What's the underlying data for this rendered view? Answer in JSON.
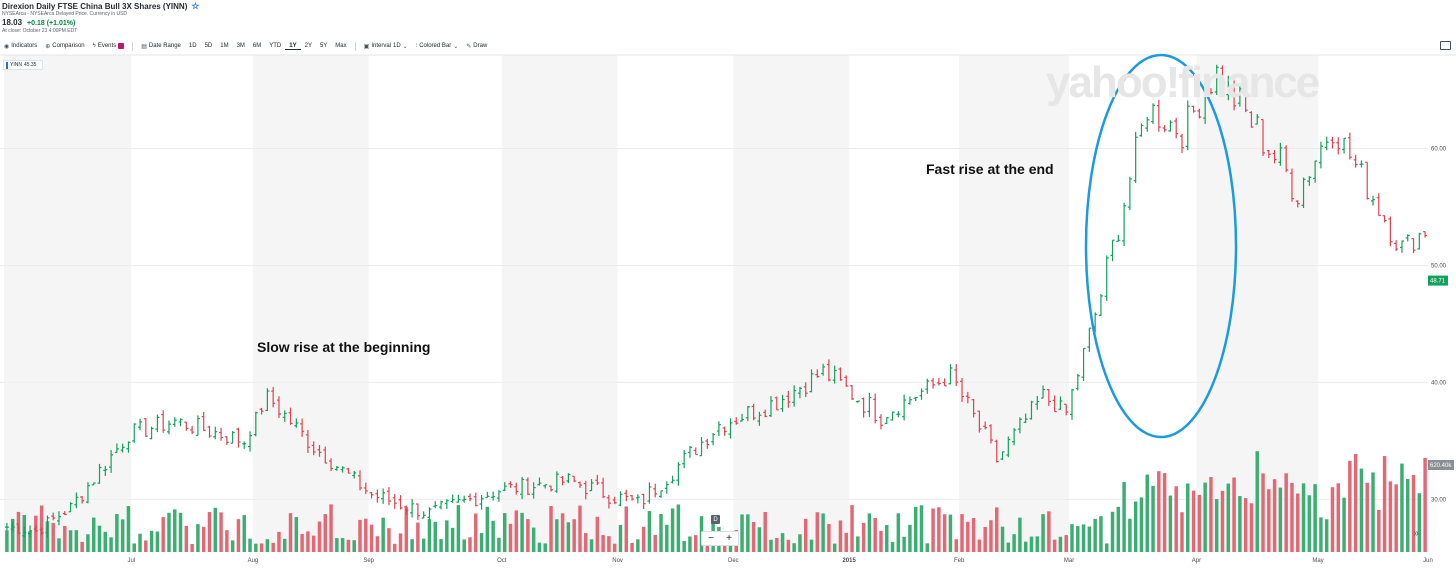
{
  "header": {
    "title": "Direxion Daily FTSE China Bull 3X Shares (YINN)",
    "subtitle": "NYSEArca - NYSEArca Delayed Price. Currency in USD",
    "price": "18.03",
    "change": "+0.18 (+1.01%)",
    "close_info": "At close: October 23 4:00PM EDT"
  },
  "toolbar": {
    "indicators": "Indicators",
    "comparison": "Comparison",
    "events": "Events",
    "date_range": "Date Range",
    "ranges": [
      "1D",
      "5D",
      "1M",
      "3M",
      "6M",
      "YTD",
      "1Y",
      "2Y",
      "5Y",
      "Max"
    ],
    "active_range": "1Y",
    "interval": "Interval",
    "interval_value": "1D",
    "chart_type": "Colored Bar",
    "draw": "Draw"
  },
  "legend": {
    "symbol": "YINN",
    "value": "45.35"
  },
  "watermark": "yahoo!finance",
  "annotations": {
    "slow": "Slow rise at the beginning",
    "fast": "Fast rise at the end"
  },
  "zoom": {
    "minus": "−",
    "plus": "+",
    "d_marker": "D"
  },
  "colors": {
    "up": "#12a05c",
    "down": "#e0424f",
    "vol_up": "#3dae73",
    "vol_down": "#e36875",
    "circle": "#1a9ae0",
    "price_tag": "#12a05c"
  },
  "chart_data": {
    "type": "bar",
    "style": "ohlc-colored-bar",
    "y_ticks": [
      "60.00",
      "50.00",
      "40.00",
      "30.00"
    ],
    "y_tick_values": [
      60,
      50,
      40,
      30
    ],
    "ylim": [
      25.5,
      68
    ],
    "x_ticks": [
      "Jul",
      "Aug",
      "Sep",
      "Oct",
      "Nov",
      "Dec",
      "2015",
      "Feb",
      "Mar",
      "Apr",
      "May",
      "Jun"
    ],
    "current_price_tag": "48.71",
    "volume_tag": "620.40k",
    "month_starts": [
      0,
      22,
      43,
      63,
      86,
      106,
      126,
      146,
      165,
      184,
      206,
      227,
      248
    ],
    "segments": [
      {
        "n": 6,
        "from": 27.7,
        "to": 27.3,
        "noise": 0.5
      },
      {
        "n": 6,
        "from": 27.3,
        "to": 29.3,
        "noise": 0.6
      },
      {
        "n": 10,
        "from": 29.3,
        "to": 35.6,
        "noise": 0.8
      },
      {
        "n": 8,
        "from": 35.6,
        "to": 36.7,
        "noise": 0.8
      },
      {
        "n": 12,
        "from": 36.7,
        "to": 35.0,
        "noise": 0.8
      },
      {
        "n": 4,
        "from": 35.0,
        "to": 38.8,
        "noise": 0.6
      },
      {
        "n": 8,
        "from": 38.8,
        "to": 34.5,
        "noise": 0.8
      },
      {
        "n": 10,
        "from": 34.5,
        "to": 30.4,
        "noise": 0.7
      },
      {
        "n": 10,
        "from": 30.4,
        "to": 28.8,
        "noise": 0.7
      },
      {
        "n": 12,
        "from": 28.8,
        "to": 30.8,
        "noise": 0.7
      },
      {
        "n": 12,
        "from": 30.8,
        "to": 31.6,
        "noise": 0.7
      },
      {
        "n": 12,
        "from": 31.6,
        "to": 29.6,
        "noise": 0.8
      },
      {
        "n": 6,
        "from": 29.6,
        "to": 32.4,
        "noise": 0.8
      },
      {
        "n": 8,
        "from": 32.4,
        "to": 36.4,
        "noise": 0.8
      },
      {
        "n": 10,
        "from": 36.4,
        "to": 38.4,
        "noise": 0.9
      },
      {
        "n": 8,
        "from": 38.4,
        "to": 40.9,
        "noise": 0.9
      },
      {
        "n": 10,
        "from": 40.9,
        "to": 37.2,
        "noise": 1.0
      },
      {
        "n": 12,
        "from": 37.2,
        "to": 40.6,
        "noise": 0.8
      },
      {
        "n": 8,
        "from": 40.6,
        "to": 33.4,
        "noise": 1.0
      },
      {
        "n": 8,
        "from": 33.4,
        "to": 38.8,
        "noise": 0.9
      },
      {
        "n": 4,
        "from": 38.8,
        "to": 37.4,
        "noise": 0.7
      },
      {
        "n": 6,
        "from": 37.4,
        "to": 47.5,
        "noise": 0.9
      },
      {
        "n": 8,
        "from": 47.5,
        "to": 63.5,
        "noise": 1.5
      },
      {
        "n": 6,
        "from": 63.5,
        "to": 61.5,
        "noise": 1.5
      },
      {
        "n": 6,
        "from": 61.5,
        "to": 66.5,
        "noise": 1.4
      },
      {
        "n": 14,
        "from": 66.5,
        "to": 56.5,
        "noise": 1.8
      },
      {
        "n": 6,
        "from": 56.5,
        "to": 62.0,
        "noise": 1.6
      },
      {
        "n": 12,
        "from": 62.0,
        "to": 51.5,
        "noise": 1.3
      },
      {
        "n": 4,
        "from": 51.5,
        "to": 53.0,
        "noise": 1.0
      }
    ]
  }
}
